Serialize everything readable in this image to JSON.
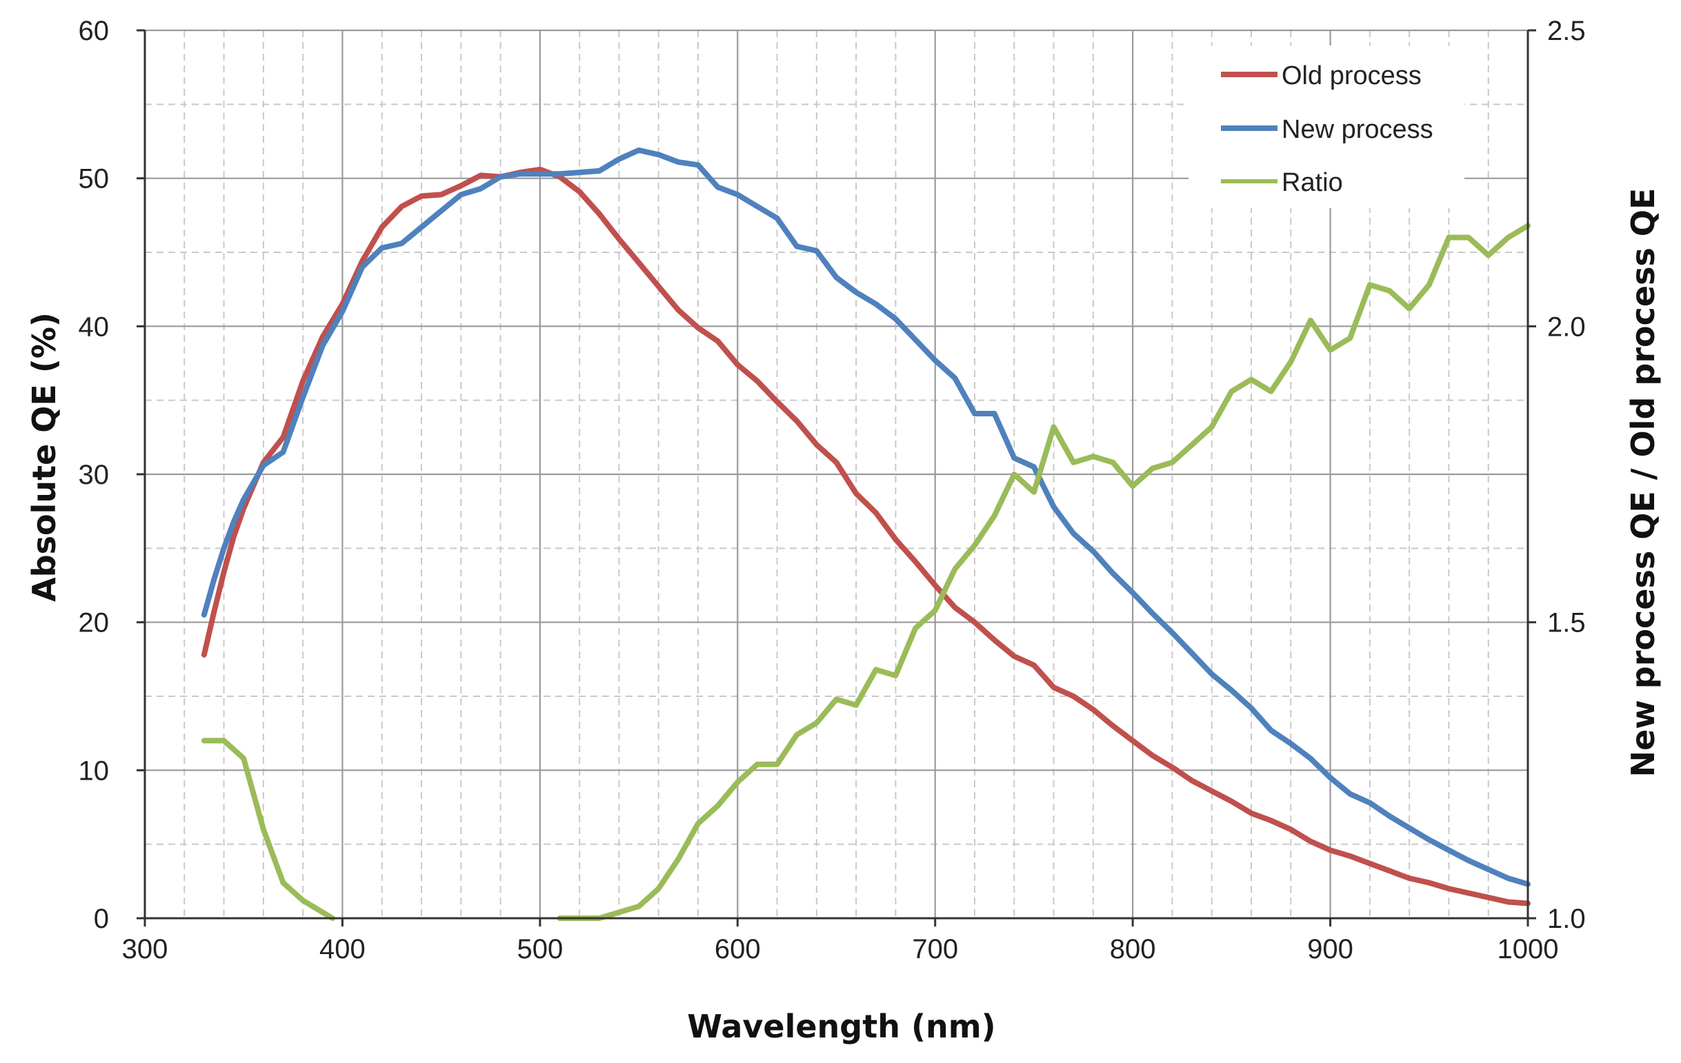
{
  "chart_data": {
    "type": "line",
    "title": "",
    "xlabel": "Wavelength (nm)",
    "ylabel": "Absolute QE (%)",
    "y2label": "New process QE / Old process QE",
    "xlim": [
      300,
      1000
    ],
    "ylim": [
      0,
      60
    ],
    "y2lim": [
      1.0,
      2.5
    ],
    "xticks": [
      "300",
      "400",
      "500",
      "600",
      "700",
      "800",
      "900",
      "1000"
    ],
    "yticks": [
      "0",
      "10",
      "20",
      "30",
      "40",
      "50",
      "60"
    ],
    "y2ticks": [
      "1.0",
      "1.5",
      "2.0",
      "2.5"
    ],
    "x_minor_step": 20,
    "y_minor_step": 5,
    "legend_position": "top-right",
    "series": [
      {
        "name": "Old process",
        "color": "#c0504d",
        "axis": "left",
        "x": [
          330,
          335,
          340,
          345,
          350,
          360,
          370,
          380,
          390,
          400,
          410,
          420,
          430,
          440,
          450,
          460,
          470,
          480,
          490,
          500,
          510,
          520,
          530,
          540,
          550,
          560,
          570,
          580,
          590,
          600,
          610,
          620,
          630,
          640,
          650,
          660,
          670,
          680,
          690,
          700,
          710,
          720,
          730,
          740,
          750,
          760,
          770,
          780,
          790,
          800,
          810,
          820,
          830,
          840,
          850,
          860,
          870,
          880,
          890,
          900,
          910,
          920,
          930,
          940,
          950,
          960,
          970,
          980,
          990,
          1000
        ],
        "values": [
          17.8,
          20.7,
          23.4,
          25.8,
          27.7,
          30.8,
          32.5,
          36.3,
          39.3,
          41.5,
          44.4,
          46.7,
          48.1,
          48.8,
          48.9,
          49.5,
          50.2,
          50.1,
          50.4,
          50.6,
          50.1,
          49.1,
          47.6,
          45.9,
          44.3,
          42.7,
          41.1,
          39.9,
          39.0,
          37.4,
          36.3,
          34.9,
          33.6,
          32.0,
          30.8,
          28.7,
          27.4,
          25.6,
          24.1,
          22.5,
          21.0,
          20.0,
          18.8,
          17.7,
          17.1,
          15.6,
          15.0,
          14.1,
          13.0,
          12.0,
          11.0,
          10.2,
          9.3,
          8.6,
          7.9,
          7.1,
          6.6,
          6.0,
          5.2,
          4.6,
          4.2,
          3.7,
          3.2,
          2.7,
          2.4,
          2.0,
          1.7,
          1.4,
          1.1,
          1.0
        ]
      },
      {
        "name": "New process",
        "color": "#4f81bd",
        "axis": "left",
        "x": [
          330,
          335,
          340,
          345,
          350,
          360,
          370,
          380,
          390,
          400,
          410,
          420,
          430,
          440,
          450,
          460,
          470,
          480,
          490,
          500,
          510,
          520,
          530,
          540,
          550,
          560,
          570,
          580,
          590,
          600,
          610,
          620,
          630,
          640,
          650,
          660,
          670,
          680,
          690,
          700,
          710,
          720,
          730,
          740,
          750,
          760,
          770,
          780,
          790,
          800,
          810,
          820,
          830,
          840,
          850,
          860,
          870,
          880,
          890,
          900,
          910,
          920,
          930,
          940,
          950,
          960,
          970,
          980,
          990,
          1000
        ],
        "values": [
          20.5,
          22.9,
          25.0,
          26.8,
          28.3,
          30.6,
          31.5,
          35.2,
          38.7,
          41.0,
          44.0,
          45.3,
          45.6,
          46.7,
          47.8,
          48.9,
          49.3,
          50.1,
          50.3,
          50.3,
          50.3,
          50.4,
          50.5,
          51.3,
          51.9,
          51.6,
          51.1,
          50.9,
          49.4,
          48.9,
          48.1,
          47.3,
          45.4,
          45.1,
          43.3,
          42.3,
          41.5,
          40.5,
          39.1,
          37.7,
          36.5,
          34.1,
          34.1,
          31.1,
          30.5,
          27.8,
          26.0,
          24.8,
          23.3,
          22.0,
          20.6,
          19.3,
          17.9,
          16.5,
          15.4,
          14.2,
          12.7,
          11.8,
          10.8,
          9.5,
          8.4,
          7.8,
          6.9,
          6.1,
          5.3,
          4.6,
          3.9,
          3.3,
          2.7,
          2.3
        ]
      },
      {
        "name": "Ratio",
        "color": "#9bbb59",
        "axis": "right",
        "x": [
          330,
          340,
          350,
          360,
          370,
          380,
          390,
          395,
          510,
          520,
          530,
          540,
          550,
          560,
          570,
          580,
          590,
          600,
          610,
          620,
          630,
          640,
          650,
          660,
          670,
          680,
          690,
          700,
          710,
          720,
          730,
          740,
          750,
          760,
          770,
          780,
          790,
          800,
          810,
          820,
          830,
          840,
          850,
          860,
          870,
          880,
          890,
          900,
          910,
          920,
          930,
          940,
          950,
          960,
          970,
          980,
          990,
          1000
        ],
        "values": [
          1.3,
          1.3,
          1.27,
          1.15,
          1.06,
          1.03,
          1.01,
          1.0,
          1.0,
          0.995,
          0.995,
          1.01,
          1.02,
          1.05,
          1.1,
          1.16,
          1.19,
          1.23,
          1.26,
          1.26,
          1.31,
          1.33,
          1.37,
          1.36,
          1.42,
          1.41,
          1.49,
          1.52,
          1.59,
          1.63,
          1.68,
          1.75,
          1.72,
          1.83,
          1.77,
          1.78,
          1.77,
          1.73,
          1.76,
          1.77,
          1.8,
          1.83,
          1.89,
          1.91,
          1.89,
          1.94,
          2.01,
          1.96,
          1.98,
          2.07,
          2.06,
          2.03,
          2.07,
          2.15,
          2.15,
          2.12,
          2.15,
          2.17
        ]
      }
    ]
  }
}
